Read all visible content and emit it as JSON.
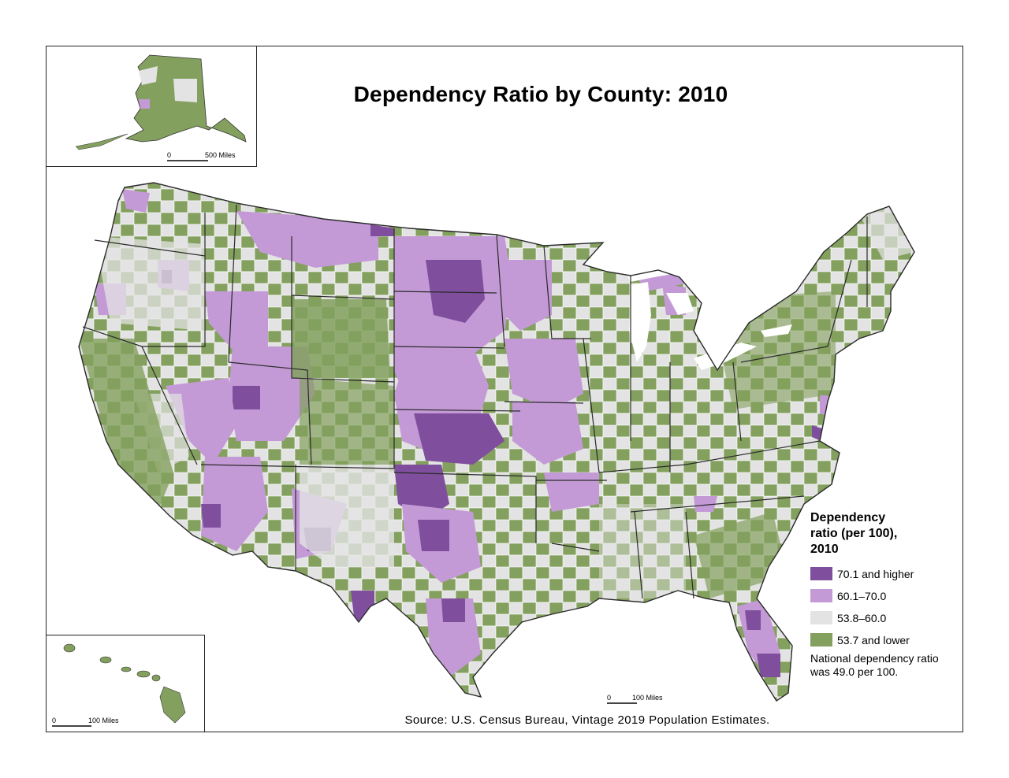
{
  "title": "Dependency Ratio by County: 2010",
  "source": "Source: U.S. Census Bureau, Vintage 2019 Population Estimates.",
  "legend": {
    "title_lines": [
      "Dependency",
      "ratio (per 100),",
      "2010"
    ],
    "items": [
      {
        "label": "70.1 and higher",
        "color": "#7f4f9d"
      },
      {
        "label": "60.1–70.0",
        "color": "#c39ad6"
      },
      {
        "label": "53.8–60.0",
        "color": "#e3e3e3"
      },
      {
        "label": "53.7 and lower",
        "color": "#83a05e"
      }
    ],
    "note_lines": [
      "National dependency ratio",
      "was 49.0 per 100."
    ]
  },
  "scales": {
    "alaska": {
      "zero": "0",
      "distance": "500 Miles"
    },
    "hawaii": {
      "zero": "0",
      "distance": "100 Miles"
    },
    "mainland": {
      "zero": "0",
      "distance": "100 Miles"
    }
  },
  "colors": {
    "high": "#7f4f9d",
    "mid_high": "#c39ad6",
    "mid_low": "#e3e3e3",
    "low": "#83a05e",
    "state_border": "#2a2a2a",
    "county_border": "#ffffff"
  }
}
